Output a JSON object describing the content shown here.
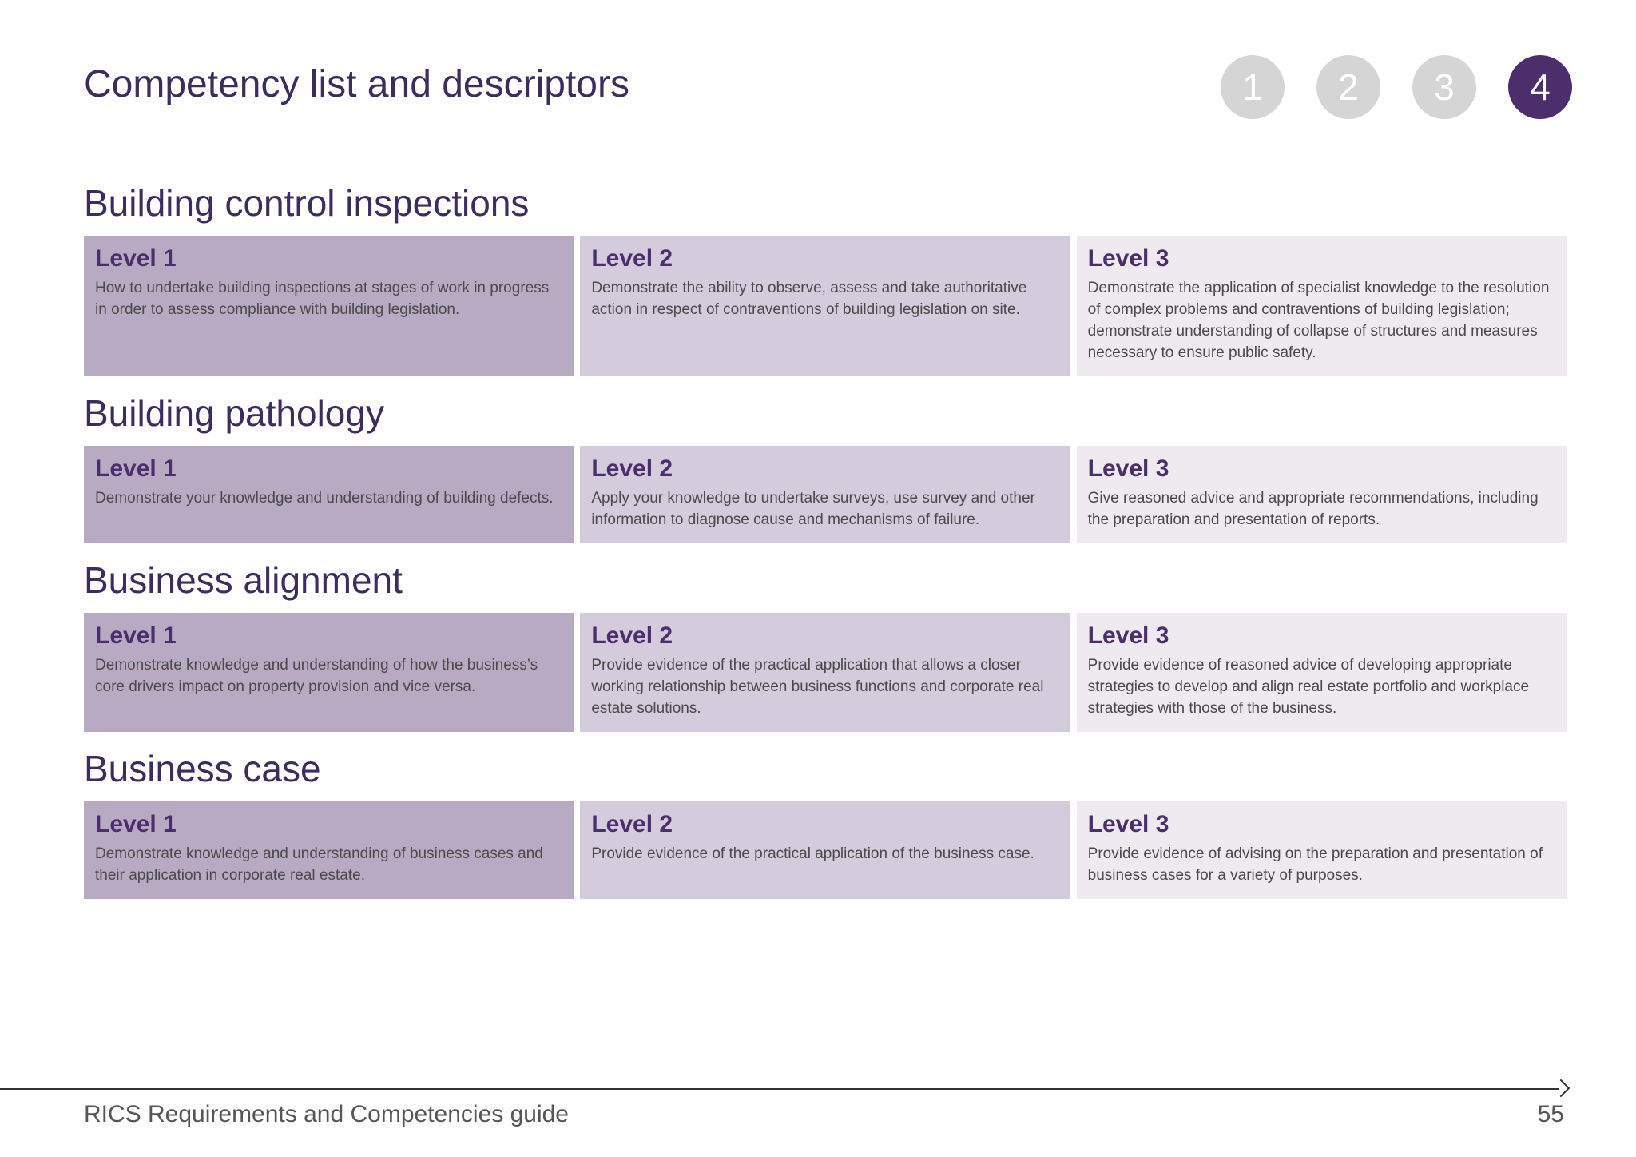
{
  "header": {
    "title": "Competency list and descriptors",
    "steps": [
      "1",
      "2",
      "3",
      "4"
    ],
    "active_step": "4"
  },
  "sections": [
    {
      "title": "Building control inspections",
      "levels": [
        {
          "label": "Level 1",
          "text": "How to undertake building inspections at stages of work in progress in order to assess compliance with building legislation."
        },
        {
          "label": "Level 2",
          "text": "Demonstrate the ability to observe, assess and take authoritative action in respect of contraventions of building legislation on site."
        },
        {
          "label": "Level 3",
          "text": "Demonstrate the application of specialist knowledge to the resolution of complex problems and contraventions of building legislation; demonstrate understanding of collapse of structures and measures necessary to ensure public safety."
        }
      ]
    },
    {
      "title": "Building pathology",
      "levels": [
        {
          "label": "Level 1",
          "text": "Demonstrate your knowledge and understanding of building defects."
        },
        {
          "label": "Level 2",
          "text": "Apply your knowledge to undertake surveys, use survey and other information to diagnose cause and mechanisms of failure."
        },
        {
          "label": "Level 3",
          "text": "Give reasoned advice and appropriate recommendations, including the preparation and presentation of reports."
        }
      ]
    },
    {
      "title": "Business alignment",
      "levels": [
        {
          "label": "Level 1",
          "text": "Demonstrate knowledge and understanding of how the business’s core drivers impact on property provision and vice versa."
        },
        {
          "label": "Level 2",
          "text": "Provide evidence of the practical application that allows a closer working relationship between business functions and corporate real estate solutions."
        },
        {
          "label": "Level 3",
          "text": "Provide evidence of reasoned advice of developing appropriate strategies to develop and align real estate portfolio and workplace strategies with those of the business."
        }
      ]
    },
    {
      "title": "Business case",
      "levels": [
        {
          "label": "Level 1",
          "text": "Demonstrate knowledge and understanding of business cases and their application in corporate real estate."
        },
        {
          "label": "Level 2",
          "text": "Provide evidence of the practical application of the business case."
        },
        {
          "label": "Level 3",
          "text": "Provide evidence of advising on the preparation and presentation of business cases for a variety of purposes."
        }
      ]
    }
  ],
  "footer": {
    "text": "RICS Requirements and Competencies guide",
    "page_number": "55"
  },
  "colors": {
    "accent": "#4b2e6b",
    "level1_bg": "#b9aac3",
    "level2_bg": "#d4cbdc",
    "level3_bg": "#eeeaf0",
    "step_inactive": "#d5d5d5"
  }
}
